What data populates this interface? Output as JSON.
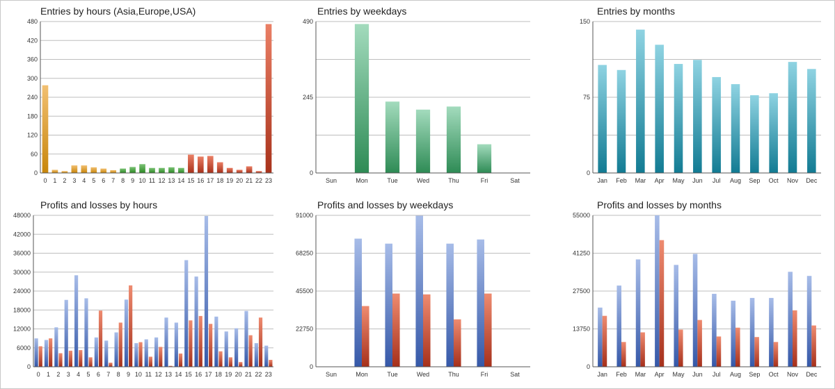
{
  "colors": {
    "asia_top": "#f2c072",
    "asia_bot": "#c8860b",
    "europe_top": "#7cc276",
    "europe_bot": "#2d8a25",
    "usa_top": "#ea7f65",
    "usa_bot": "#a8321b",
    "weekday_top": "#a3dbbd",
    "weekday_bot": "#2e8b55",
    "month_top": "#8fd3e2",
    "month_bot": "#127b93",
    "profit_top": "#a7bce8",
    "profit_bot": "#3558a8",
    "loss_top": "#ee8b70",
    "loss_bot": "#a6301b"
  },
  "chart_data": [
    {
      "type": "bar",
      "title": "Entries by hours (Asia,Europe,USA)",
      "categories": [
        "0",
        "1",
        "2",
        "3",
        "4",
        "5",
        "6",
        "7",
        "8",
        "9",
        "10",
        "11",
        "12",
        "13",
        "14",
        "15",
        "16",
        "17",
        "18",
        "19",
        "20",
        "21",
        "22",
        "23"
      ],
      "values": [
        278,
        10,
        6,
        24,
        24,
        18,
        14,
        9,
        14,
        19,
        28,
        16,
        16,
        18,
        16,
        58,
        52,
        54,
        34,
        16,
        10,
        21,
        6,
        472
      ],
      "groups": [
        "asia",
        "asia",
        "asia",
        "asia",
        "asia",
        "asia",
        "asia",
        "asia",
        "europe",
        "europe",
        "europe",
        "europe",
        "europe",
        "europe",
        "europe",
        "usa",
        "usa",
        "usa",
        "usa",
        "usa",
        "usa",
        "usa",
        "usa",
        "usa"
      ],
      "ylim": [
        0,
        480
      ],
      "yticks": [
        "0",
        "60",
        "120",
        "180",
        "240",
        "300",
        "360",
        "420",
        "480"
      ],
      "grid": true
    },
    {
      "type": "bar",
      "title": "Entries by weekdays",
      "categories": [
        "Sun",
        "Mon",
        "Tue",
        "Wed",
        "Thu",
        "Fri",
        "Sat"
      ],
      "values": [
        0,
        482,
        231,
        205,
        215,
        93,
        0
      ],
      "ylim": [
        0,
        490
      ],
      "yticks": [
        "0",
        "245",
        "490"
      ],
      "grid": true
    },
    {
      "type": "bar",
      "title": "Entries by months",
      "categories": [
        "Jan",
        "Feb",
        "Mar",
        "Apr",
        "May",
        "Jun",
        "Jul",
        "Aug",
        "Sep",
        "Oct",
        "Nov",
        "Dec"
      ],
      "values": [
        107,
        102,
        142,
        127,
        108,
        112,
        95,
        88,
        77,
        79,
        110,
        103
      ],
      "ylim": [
        0,
        150
      ],
      "yticks": [
        "0",
        "75",
        "150"
      ],
      "grid": true
    },
    {
      "type": "bar",
      "title": "Profits and losses by hours",
      "categories": [
        "0",
        "1",
        "2",
        "3",
        "4",
        "5",
        "6",
        "7",
        "8",
        "9",
        "10",
        "11",
        "12",
        "13",
        "14",
        "15",
        "16",
        "17",
        "18",
        "19",
        "20",
        "21",
        "22",
        "23"
      ],
      "series": [
        {
          "values": [
            9000,
            8500,
            12500,
            21200,
            29000,
            21700,
            9300,
            8300,
            10900,
            21300,
            7500,
            8700,
            9300,
            15600,
            14000,
            33800,
            28600,
            47800,
            15900,
            11200,
            12200,
            17700,
            7500,
            6700
          ]
        },
        {
          "values": [
            6500,
            9000,
            4300,
            5100,
            5300,
            3000,
            17800,
            1300,
            14000,
            25800,
            7800,
            3200,
            6300,
            300,
            4200,
            14700,
            16100,
            13600,
            4900,
            3000,
            1500,
            10000,
            15600,
            2200
          ]
        }
      ],
      "ylim": [
        0,
        48000
      ],
      "yticks": [
        "0",
        "6000",
        "12000",
        "18000",
        "24000",
        "30000",
        "36000",
        "42000",
        "48000"
      ],
      "grid": true
    },
    {
      "type": "bar",
      "title": "Profits and losses by weekdays",
      "categories": [
        "Sun",
        "Mon",
        "Tue",
        "Wed",
        "Thu",
        "Fri",
        "Sat"
      ],
      "series": [
        {
          "values": [
            0,
            77000,
            74000,
            90800,
            74000,
            76500,
            0
          ]
        },
        {
          "values": [
            0,
            36500,
            44000,
            43500,
            28500,
            44000,
            0
          ]
        }
      ],
      "ylim": [
        0,
        91000
      ],
      "yticks": [
        "0",
        "22750",
        "45500",
        "68250",
        "91000"
      ],
      "grid": true
    },
    {
      "type": "bar",
      "title": "Profits and losses by months",
      "categories": [
        "Jan",
        "Feb",
        "Mar",
        "Apr",
        "May",
        "Jun",
        "Jul",
        "Aug",
        "Sep",
        "Oct",
        "Nov",
        "Dec"
      ],
      "series": [
        {
          "values": [
            21500,
            29500,
            39000,
            55000,
            37000,
            41000,
            26500,
            24000,
            25000,
            25000,
            34500,
            33000
          ]
        },
        {
          "values": [
            18500,
            9000,
            12500,
            46000,
            13500,
            17000,
            11000,
            14200,
            10800,
            9000,
            20500,
            15000
          ]
        }
      ],
      "ylim": [
        0,
        55000
      ],
      "yticks": [
        "0",
        "13750",
        "27500",
        "41250",
        "55000"
      ],
      "grid": true
    }
  ]
}
